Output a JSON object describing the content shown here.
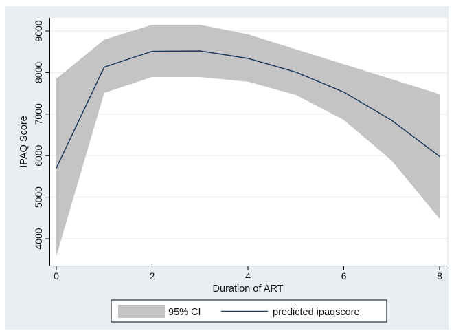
{
  "chart_data": {
    "type": "line",
    "title": "",
    "xlabel": "Duration of ART",
    "ylabel": "IPAQ Score",
    "xlim": [
      0,
      8
    ],
    "ylim": [
      3500,
      9300
    ],
    "x_ticks": [
      "0",
      "2",
      "4",
      "6",
      "8"
    ],
    "y_ticks": [
      "4000",
      "5000",
      "6000",
      "7000",
      "8000",
      "9000"
    ],
    "x": [
      0,
      1,
      2,
      3,
      4,
      5,
      6,
      7,
      8
    ],
    "series": [
      {
        "name": "predicted ipaqscore",
        "values": [
          5700,
          8130,
          8510,
          8520,
          8340,
          8010,
          7530,
          6850,
          5980
        ],
        "color": "#1b3a5c"
      }
    ],
    "band": {
      "name": "95% CI",
      "lower": [
        3580,
        7510,
        7890,
        7890,
        7780,
        7460,
        6860,
        5880,
        4480
      ],
      "upper": [
        7850,
        8790,
        9150,
        9150,
        8920,
        8560,
        8200,
        7840,
        7480
      ],
      "color": "#c4c4c4"
    },
    "grid": true,
    "legend_position": "bottom",
    "colors": {
      "panel_background": "#e9eef3",
      "plot_background": "#ffffff",
      "grid": "#e9eef3"
    }
  }
}
